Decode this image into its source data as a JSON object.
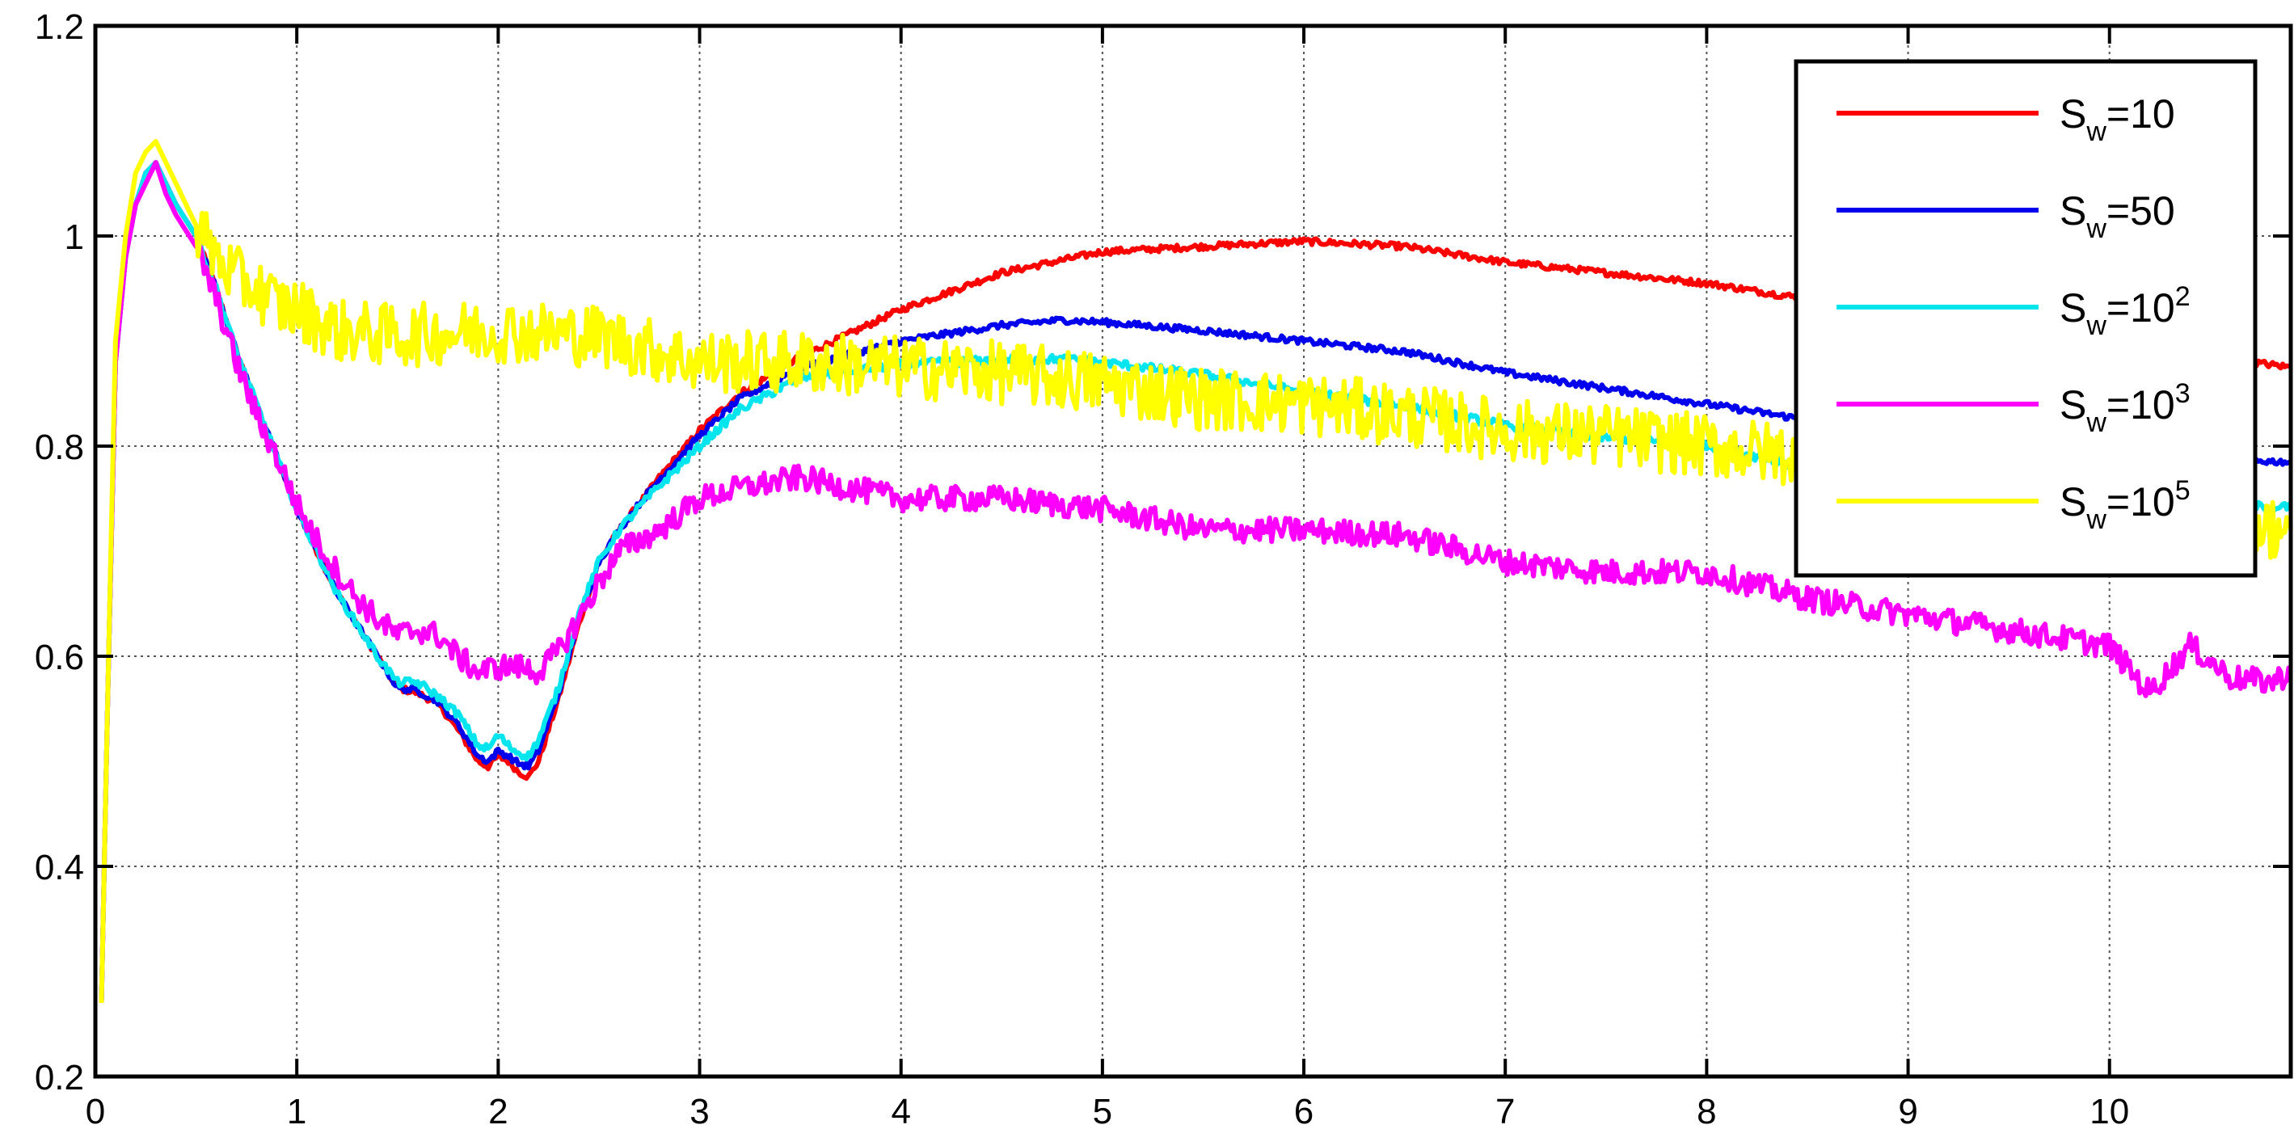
{
  "chart_data": {
    "type": "line",
    "title": "",
    "xlabel": "",
    "ylabel": "",
    "xlim": [
      0,
      10.9
    ],
    "ylim": [
      0.2,
      1.2
    ],
    "xticks": [
      "0",
      "1",
      "2",
      "3",
      "4",
      "5",
      "6",
      "7",
      "8",
      "9",
      "10"
    ],
    "yticks": [
      "0.2",
      "0.4",
      "0.6",
      "0.8",
      "1",
      "1.2"
    ],
    "grid": true,
    "legend_position": "top-right",
    "series": [
      {
        "name": "S_w=10",
        "label_base": "S",
        "label_sub": "w",
        "label_rest": "=10",
        "label_sup": "",
        "color": "#ff0000",
        "noise": 0.003,
        "points": [
          [
            0.03,
            0.27
          ],
          [
            0.06,
            0.55
          ],
          [
            0.1,
            0.88
          ],
          [
            0.15,
            0.98
          ],
          [
            0.2,
            1.03
          ],
          [
            0.25,
            1.06
          ],
          [
            0.3,
            1.07
          ],
          [
            0.35,
            1.05
          ],
          [
            0.4,
            1.03
          ],
          [
            0.5,
            1.0
          ],
          [
            0.6,
            0.95
          ],
          [
            0.7,
            0.89
          ],
          [
            0.8,
            0.84
          ],
          [
            0.9,
            0.79
          ],
          [
            1.0,
            0.74
          ],
          [
            1.1,
            0.7
          ],
          [
            1.2,
            0.66
          ],
          [
            1.3,
            0.63
          ],
          [
            1.4,
            0.6
          ],
          [
            1.5,
            0.57
          ],
          [
            1.6,
            0.565
          ],
          [
            1.7,
            0.555
          ],
          [
            1.8,
            0.53
          ],
          [
            1.9,
            0.5
          ],
          [
            1.95,
            0.495
          ],
          [
            2.0,
            0.505
          ],
          [
            2.05,
            0.5
          ],
          [
            2.1,
            0.49
          ],
          [
            2.15,
            0.485
          ],
          [
            2.2,
            0.5
          ],
          [
            2.3,
            0.56
          ],
          [
            2.4,
            0.63
          ],
          [
            2.5,
            0.69
          ],
          [
            2.6,
            0.72
          ],
          [
            2.7,
            0.745
          ],
          [
            2.8,
            0.77
          ],
          [
            3.0,
            0.815
          ],
          [
            3.2,
            0.85
          ],
          [
            3.5,
            0.885
          ],
          [
            4.0,
            0.93
          ],
          [
            4.5,
            0.965
          ],
          [
            5.0,
            0.985
          ],
          [
            5.5,
            0.99
          ],
          [
            6.0,
            0.995
          ],
          [
            6.5,
            0.99
          ],
          [
            7.0,
            0.975
          ],
          [
            7.5,
            0.965
          ],
          [
            8.0,
            0.955
          ],
          [
            8.5,
            0.94
          ],
          [
            9.0,
            0.925
          ],
          [
            9.5,
            0.91
          ],
          [
            10.0,
            0.895
          ],
          [
            10.5,
            0.885
          ],
          [
            10.9,
            0.875
          ]
        ]
      },
      {
        "name": "S_w=50",
        "label_base": "S",
        "label_sub": "w",
        "label_rest": "=50",
        "label_sup": "",
        "color": "#0000ee",
        "noise": 0.003,
        "points": [
          [
            0.03,
            0.27
          ],
          [
            0.06,
            0.55
          ],
          [
            0.1,
            0.88
          ],
          [
            0.15,
            0.98
          ],
          [
            0.2,
            1.03
          ],
          [
            0.25,
            1.06
          ],
          [
            0.3,
            1.07
          ],
          [
            0.35,
            1.05
          ],
          [
            0.4,
            1.03
          ],
          [
            0.5,
            1.0
          ],
          [
            0.6,
            0.95
          ],
          [
            0.7,
            0.89
          ],
          [
            0.8,
            0.84
          ],
          [
            0.9,
            0.79
          ],
          [
            1.0,
            0.74
          ],
          [
            1.1,
            0.7
          ],
          [
            1.2,
            0.66
          ],
          [
            1.3,
            0.63
          ],
          [
            1.4,
            0.6
          ],
          [
            1.5,
            0.57
          ],
          [
            1.6,
            0.567
          ],
          [
            1.7,
            0.557
          ],
          [
            1.8,
            0.535
          ],
          [
            1.9,
            0.505
          ],
          [
            1.95,
            0.5
          ],
          [
            2.0,
            0.51
          ],
          [
            2.05,
            0.505
          ],
          [
            2.1,
            0.498
          ],
          [
            2.15,
            0.495
          ],
          [
            2.2,
            0.51
          ],
          [
            2.3,
            0.565
          ],
          [
            2.4,
            0.635
          ],
          [
            2.5,
            0.69
          ],
          [
            2.6,
            0.72
          ],
          [
            2.7,
            0.745
          ],
          [
            2.8,
            0.768
          ],
          [
            3.0,
            0.81
          ],
          [
            3.2,
            0.845
          ],
          [
            3.5,
            0.875
          ],
          [
            4.0,
            0.9
          ],
          [
            4.5,
            0.915
          ],
          [
            4.8,
            0.92
          ],
          [
            5.0,
            0.918
          ],
          [
            5.5,
            0.91
          ],
          [
            6.0,
            0.9
          ],
          [
            6.5,
            0.89
          ],
          [
            7.0,
            0.87
          ],
          [
            7.5,
            0.855
          ],
          [
            8.0,
            0.84
          ],
          [
            8.5,
            0.825
          ],
          [
            9.0,
            0.812
          ],
          [
            9.5,
            0.8
          ],
          [
            10.0,
            0.792
          ],
          [
            10.5,
            0.787
          ],
          [
            10.9,
            0.785
          ]
        ]
      },
      {
        "name": "S_w=10^2",
        "label_base": "S",
        "label_sub": "w",
        "label_rest": "=10",
        "label_sup": "2",
        "color": "#00e5ee",
        "noise": 0.004,
        "points": [
          [
            0.03,
            0.27
          ],
          [
            0.06,
            0.55
          ],
          [
            0.1,
            0.88
          ],
          [
            0.15,
            0.98
          ],
          [
            0.2,
            1.03
          ],
          [
            0.25,
            1.06
          ],
          [
            0.3,
            1.07
          ],
          [
            0.35,
            1.05
          ],
          [
            0.4,
            1.03
          ],
          [
            0.5,
            1.0
          ],
          [
            0.6,
            0.95
          ],
          [
            0.7,
            0.89
          ],
          [
            0.8,
            0.84
          ],
          [
            0.9,
            0.79
          ],
          [
            1.0,
            0.74
          ],
          [
            1.1,
            0.7
          ],
          [
            1.2,
            0.66
          ],
          [
            1.3,
            0.63
          ],
          [
            1.4,
            0.6
          ],
          [
            1.5,
            0.575
          ],
          [
            1.6,
            0.575
          ],
          [
            1.7,
            0.562
          ],
          [
            1.8,
            0.545
          ],
          [
            1.9,
            0.515
          ],
          [
            1.95,
            0.512
          ],
          [
            2.0,
            0.525
          ],
          [
            2.05,
            0.515
          ],
          [
            2.1,
            0.508
          ],
          [
            2.15,
            0.505
          ],
          [
            2.2,
            0.52
          ],
          [
            2.3,
            0.57
          ],
          [
            2.4,
            0.64
          ],
          [
            2.5,
            0.69
          ],
          [
            2.6,
            0.72
          ],
          [
            2.7,
            0.742
          ],
          [
            2.8,
            0.762
          ],
          [
            3.0,
            0.8
          ],
          [
            3.2,
            0.835
          ],
          [
            3.5,
            0.865
          ],
          [
            4.0,
            0.878
          ],
          [
            4.5,
            0.882
          ],
          [
            4.8,
            0.883
          ],
          [
            5.0,
            0.88
          ],
          [
            5.5,
            0.868
          ],
          [
            6.0,
            0.852
          ],
          [
            6.5,
            0.838
          ],
          [
            7.0,
            0.82
          ],
          [
            7.5,
            0.808
          ],
          [
            8.0,
            0.8
          ],
          [
            8.5,
            0.78
          ],
          [
            9.0,
            0.765
          ],
          [
            9.5,
            0.755
          ],
          [
            10.0,
            0.748
          ],
          [
            10.5,
            0.744
          ],
          [
            10.9,
            0.742
          ]
        ]
      },
      {
        "name": "S_w=10^3",
        "label_base": "S",
        "label_sub": "w",
        "label_rest": "=10",
        "label_sup": "3",
        "color": "#ff00ff",
        "noise": 0.012,
        "points": [
          [
            0.03,
            0.27
          ],
          [
            0.06,
            0.55
          ],
          [
            0.1,
            0.88
          ],
          [
            0.15,
            0.98
          ],
          [
            0.2,
            1.03
          ],
          [
            0.25,
            1.05
          ],
          [
            0.3,
            1.07
          ],
          [
            0.35,
            1.04
          ],
          [
            0.4,
            1.02
          ],
          [
            0.5,
            0.99
          ],
          [
            0.6,
            0.94
          ],
          [
            0.7,
            0.88
          ],
          [
            0.8,
            0.83
          ],
          [
            0.9,
            0.79
          ],
          [
            1.0,
            0.745
          ],
          [
            1.1,
            0.71
          ],
          [
            1.2,
            0.68
          ],
          [
            1.3,
            0.655
          ],
          [
            1.4,
            0.635
          ],
          [
            1.5,
            0.62
          ],
          [
            1.6,
            0.625
          ],
          [
            1.7,
            0.62
          ],
          [
            1.8,
            0.6
          ],
          [
            1.9,
            0.585
          ],
          [
            2.0,
            0.59
          ],
          [
            2.1,
            0.59
          ],
          [
            2.2,
            0.585
          ],
          [
            2.3,
            0.605
          ],
          [
            2.4,
            0.635
          ],
          [
            2.5,
            0.67
          ],
          [
            2.6,
            0.7
          ],
          [
            2.7,
            0.71
          ],
          [
            2.8,
            0.72
          ],
          [
            3.0,
            0.75
          ],
          [
            3.2,
            0.76
          ],
          [
            3.5,
            0.77
          ],
          [
            4.0,
            0.75
          ],
          [
            4.5,
            0.75
          ],
          [
            5.0,
            0.74
          ],
          [
            5.5,
            0.72
          ],
          [
            6.0,
            0.72
          ],
          [
            6.5,
            0.715
          ],
          [
            7.0,
            0.69
          ],
          [
            7.5,
            0.68
          ],
          [
            8.0,
            0.68
          ],
          [
            8.5,
            0.655
          ],
          [
            9.0,
            0.64
          ],
          [
            9.5,
            0.625
          ],
          [
            10.0,
            0.61
          ],
          [
            10.2,
            0.565
          ],
          [
            10.4,
            0.61
          ],
          [
            10.6,
            0.58
          ],
          [
            10.8,
            0.575
          ],
          [
            10.9,
            0.585
          ]
        ]
      },
      {
        "name": "S_w=10^5",
        "label_base": "S",
        "label_sub": "w",
        "label_rest": "=10",
        "label_sup": "5",
        "color": "#ffff00",
        "noise": 0.03,
        "points": [
          [
            0.03,
            0.27
          ],
          [
            0.06,
            0.55
          ],
          [
            0.1,
            0.9
          ],
          [
            0.15,
            1.0
          ],
          [
            0.2,
            1.06
          ],
          [
            0.25,
            1.08
          ],
          [
            0.3,
            1.09
          ],
          [
            0.35,
            1.07
          ],
          [
            0.4,
            1.05
          ],
          [
            0.5,
            1.01
          ],
          [
            0.6,
            0.98
          ],
          [
            0.7,
            0.96
          ],
          [
            0.8,
            0.95
          ],
          [
            0.9,
            0.935
          ],
          [
            1.0,
            0.93
          ],
          [
            1.2,
            0.91
          ],
          [
            1.5,
            0.905
          ],
          [
            2.0,
            0.91
          ],
          [
            2.5,
            0.905
          ],
          [
            3.0,
            0.88
          ],
          [
            3.5,
            0.88
          ],
          [
            4.0,
            0.875
          ],
          [
            4.5,
            0.87
          ],
          [
            5.0,
            0.86
          ],
          [
            5.5,
            0.845
          ],
          [
            6.0,
            0.84
          ],
          [
            6.5,
            0.83
          ],
          [
            7.0,
            0.815
          ],
          [
            7.5,
            0.81
          ],
          [
            8.0,
            0.8
          ],
          [
            8.5,
            0.79
          ],
          [
            9.0,
            0.77
          ],
          [
            9.5,
            0.75
          ],
          [
            10.0,
            0.74
          ],
          [
            10.5,
            0.73
          ],
          [
            10.9,
            0.72
          ]
        ]
      }
    ]
  }
}
